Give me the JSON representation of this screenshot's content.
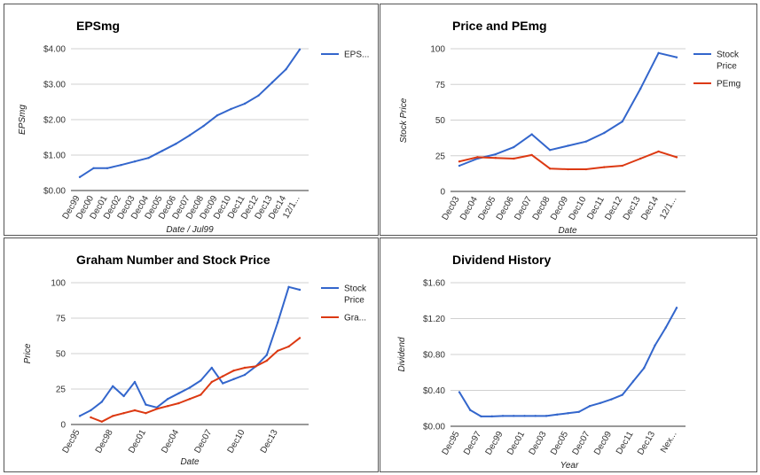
{
  "colors": {
    "blue": "#3366cc",
    "red": "#dc3912"
  },
  "chart_data": [
    {
      "type": "line",
      "title": "EPSmg",
      "xlabel": "Date / Jul99",
      "ylabel": "EPSmg",
      "ylim": [
        0,
        4
      ],
      "yticks": [
        "$0.00",
        "$1.00",
        "$2.00",
        "$3.00",
        "$4.00"
      ],
      "categories": [
        "Dec99",
        "Dec00",
        "Dec01",
        "Dec02",
        "Dec03",
        "Dec04",
        "Dec05",
        "Dec06",
        "Dec07",
        "Dec08",
        "Dec09",
        "Dec10",
        "Dec11",
        "Dec12",
        "Dec13",
        "Dec14",
        "12/1..."
      ],
      "series": [
        {
          "name": "EPS...",
          "color": "#3366cc",
          "values": [
            0.38,
            0.63,
            0.63,
            0.72,
            0.82,
            0.92,
            1.12,
            1.32,
            1.56,
            1.82,
            2.12,
            2.3,
            2.45,
            2.68,
            3.05,
            3.42,
            3.98
          ]
        }
      ],
      "grid": true,
      "legend": "right"
    },
    {
      "type": "line",
      "title": "Price and PEmg",
      "xlabel": "Date",
      "ylabel": "Stock Price",
      "ylim": [
        0,
        100
      ],
      "yticks": [
        "0",
        "25",
        "50",
        "75",
        "100"
      ],
      "categories": [
        "Dec03",
        "Dec04",
        "Dec05",
        "Dec06",
        "Dec07",
        "Dec08",
        "Dec09",
        "Dec10",
        "Dec11",
        "Dec12",
        "Dec13",
        "Dec14",
        "12/1..."
      ],
      "series": [
        {
          "name": "Stock Price",
          "color": "#3366cc",
          "values": [
            18,
            23,
            26,
            31,
            40,
            29,
            32,
            35,
            41,
            49,
            72,
            97,
            94
          ]
        },
        {
          "name": "PEmg",
          "color": "#dc3912",
          "values": [
            21,
            24,
            23.5,
            23,
            25.5,
            16,
            15.5,
            15.5,
            17,
            18,
            23,
            28,
            24
          ]
        }
      ],
      "grid": true,
      "legend": "right"
    },
    {
      "type": "line",
      "title": "Graham Number and Stock Price",
      "xlabel": "Date",
      "ylabel": "Price",
      "ylim": [
        0,
        100
      ],
      "yticks": [
        "0",
        "25",
        "50",
        "75",
        "100"
      ],
      "xtick_labels": [
        {
          "label": "Dec95",
          "index": 0
        },
        {
          "label": "Dec98",
          "index": 3
        },
        {
          "label": "Dec01",
          "index": 6
        },
        {
          "label": "Dec04",
          "index": 9
        },
        {
          "label": "Dec07",
          "index": 12
        },
        {
          "label": "Dec10",
          "index": 15
        },
        {
          "label": "Dec13",
          "index": 18
        }
      ],
      "categories": [
        "Dec95",
        "Dec96",
        "Dec97",
        "Dec98",
        "Dec99",
        "Dec00",
        "Dec01",
        "Dec02",
        "Dec03",
        "Dec04",
        "Dec05",
        "Dec06",
        "Dec07",
        "Dec08",
        "Dec09",
        "Dec10",
        "Dec11",
        "Dec12",
        "Dec13",
        "Dec14",
        "Dec15"
      ],
      "series": [
        {
          "name": "Stock Price",
          "color": "#3366cc",
          "values": [
            6,
            10,
            16,
            27,
            20,
            30,
            14,
            12,
            18,
            22,
            26,
            31,
            40,
            29,
            32,
            35,
            41,
            49,
            72,
            97,
            95
          ]
        },
        {
          "name": "Gra...",
          "color": "#dc3912",
          "values": [
            null,
            5,
            2,
            6,
            8,
            10,
            8,
            11,
            13,
            15,
            18,
            21,
            30,
            34,
            38,
            40,
            41,
            45,
            52,
            55,
            61
          ]
        }
      ],
      "grid": true,
      "legend": "right"
    },
    {
      "type": "line",
      "title": "Dividend History",
      "xlabel": "Year",
      "ylabel": "Dividend",
      "ylim": [
        0,
        1.6
      ],
      "yticks": [
        "$0.00",
        "$0.40",
        "$0.80",
        "$1.20",
        "$1.60"
      ],
      "xtick_labels": [
        {
          "label": "Dec95",
          "index": 0
        },
        {
          "label": "Dec97",
          "index": 2
        },
        {
          "label": "Dec99",
          "index": 4
        },
        {
          "label": "Dec01",
          "index": 6
        },
        {
          "label": "Dec03",
          "index": 8
        },
        {
          "label": "Dec05",
          "index": 10
        },
        {
          "label": "Dec07",
          "index": 12
        },
        {
          "label": "Dec09",
          "index": 14
        },
        {
          "label": "Dec11",
          "index": 16
        },
        {
          "label": "Dec13",
          "index": 18
        },
        {
          "label": "Nex...",
          "index": 20
        }
      ],
      "categories": [
        "Dec95",
        "Dec96",
        "Dec97",
        "Dec98",
        "Dec99",
        "Dec00",
        "Dec01",
        "Dec02",
        "Dec03",
        "Dec04",
        "Dec05",
        "Dec06",
        "Dec07",
        "Dec08",
        "Dec09",
        "Dec10",
        "Dec11",
        "Dec12",
        "Dec13",
        "Dec14",
        "Next"
      ],
      "series": [
        {
          "name": "Dividend",
          "color": "#3366cc",
          "values": [
            0.38,
            0.18,
            0.11,
            0.11,
            0.115,
            0.115,
            0.115,
            0.115,
            0.115,
            0.13,
            0.145,
            0.16,
            0.225,
            0.26,
            0.3,
            0.35,
            0.5,
            0.65,
            0.9,
            1.1,
            1.32
          ]
        }
      ],
      "grid": true,
      "legend": "none"
    }
  ]
}
